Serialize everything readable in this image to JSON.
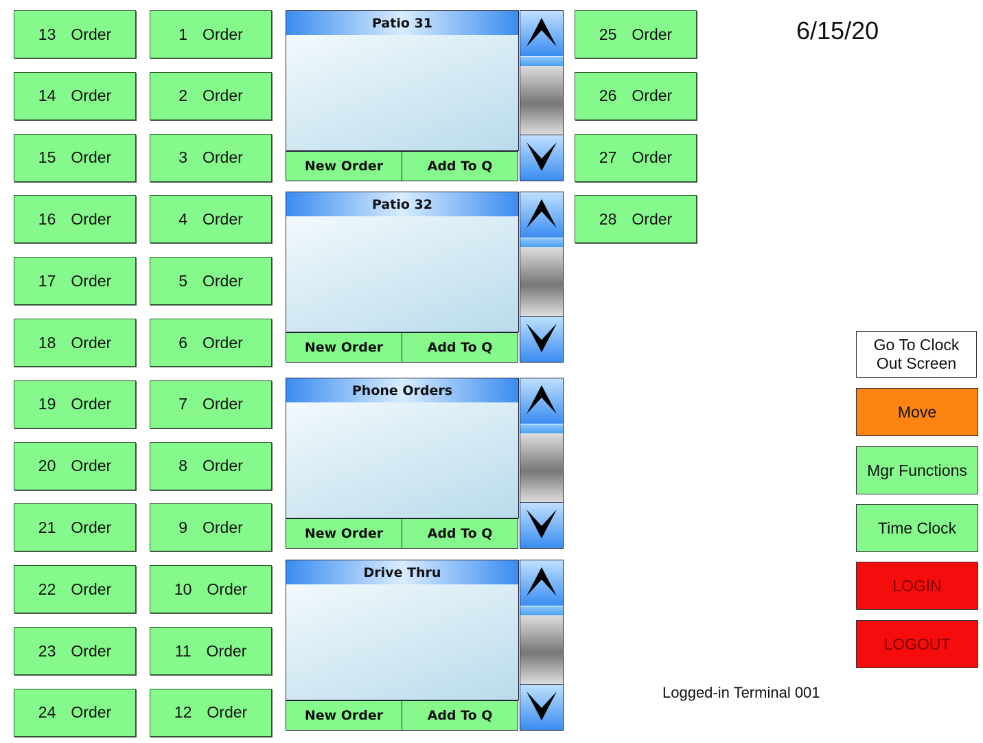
{
  "date": "6/15/20",
  "terminal": "Logged-in Terminal 001",
  "order_label": "Order",
  "order_columns": [
    [
      "13",
      "14",
      "15",
      "16",
      "17",
      "18",
      "19",
      "20",
      "21",
      "22",
      "23",
      "24"
    ],
    [
      "1",
      "2",
      "3",
      "4",
      "5",
      "6",
      "7",
      "8",
      "9",
      "10",
      "11",
      "12"
    ],
    [
      "25",
      "26",
      "27",
      "28"
    ]
  ],
  "panels": [
    {
      "title": "Patio 31",
      "new_order": "New Order",
      "add_to_q": "Add To Q"
    },
    {
      "title": "Patio 32",
      "new_order": "New Order",
      "add_to_q": "Add To Q"
    },
    {
      "title": "Phone Orders",
      "new_order": "New Order",
      "add_to_q": "Add To Q"
    },
    {
      "title": "Drive Thru",
      "new_order": "New Order",
      "add_to_q": "Add To Q"
    }
  ],
  "right_buttons": [
    {
      "label": "Go To Clock Out Screen",
      "color": "#ffffff",
      "text_color": "#111111"
    },
    {
      "label": "Move",
      "color": "#fb8510",
      "text_color": "#111111"
    },
    {
      "label": "Mgr Functions",
      "color": "#86f98c",
      "text_color": "#111111"
    },
    {
      "label": "Time Clock",
      "color": "#86f98c",
      "text_color": "#111111"
    },
    {
      "label": "LOGIN",
      "color": "#f50d0d",
      "text_color": "#7a0000"
    },
    {
      "label": "LOGOUT",
      "color": "#f50d0d",
      "text_color": "#7a0000"
    }
  ]
}
